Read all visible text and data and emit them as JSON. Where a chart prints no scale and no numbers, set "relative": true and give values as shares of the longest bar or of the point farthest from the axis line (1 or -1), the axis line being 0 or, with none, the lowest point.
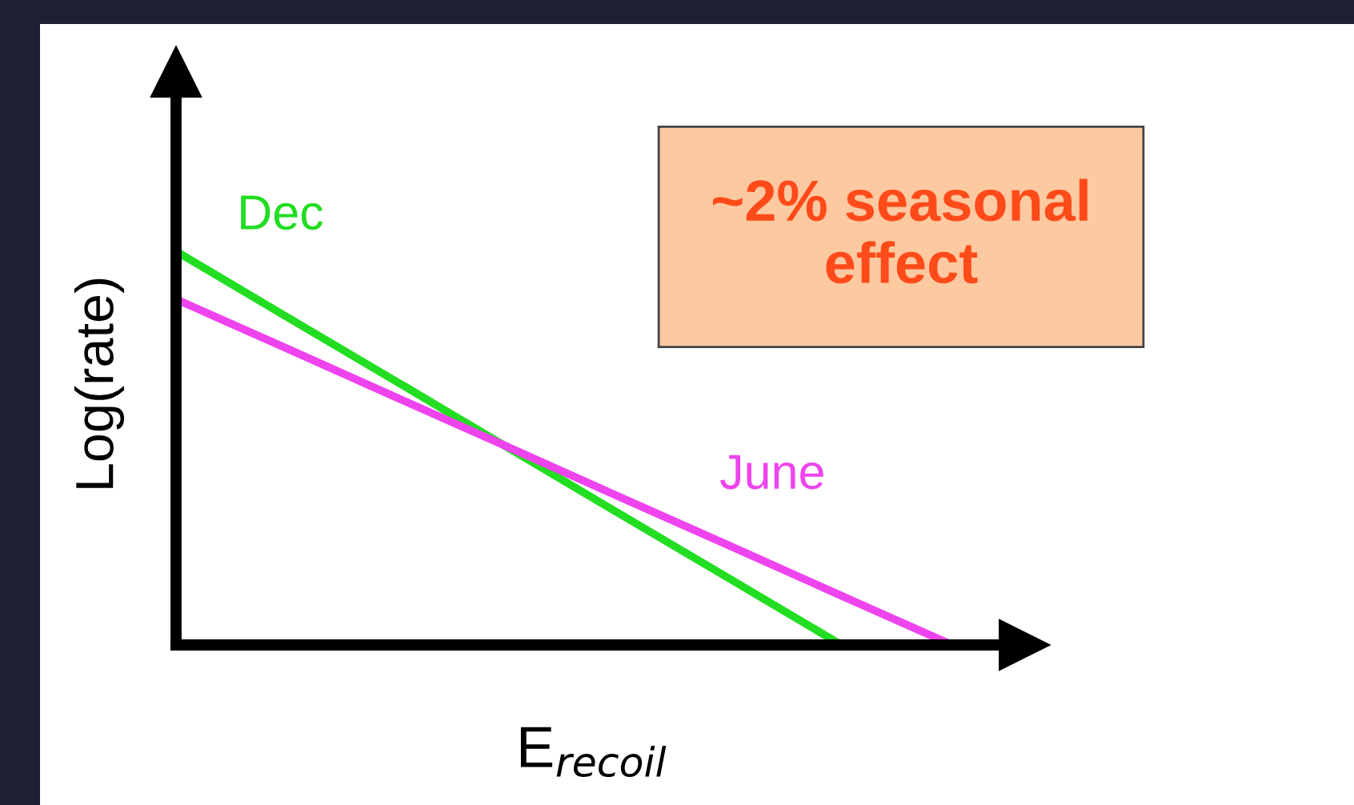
{
  "chart_data": {
    "type": "line",
    "relative": true,
    "xlabel": "E$_{recoil}$",
    "ylabel": "Log(rate)",
    "categories": [
      null,
      null,
      null,
      null,
      null,
      null,
      null,
      null
    ],
    "series": [
      {
        "name": "Dec",
        "color": "#22dd22",
        "values": [
          1,
          0.833,
          0.667,
          0.5,
          0.333,
          0.167,
          0,
          null
        ]
      },
      {
        "name": "June",
        "color": "#ee44ee",
        "values": [
          0.878,
          0.753,
          0.627,
          0.502,
          0.376,
          0.251,
          0.125,
          0
        ]
      }
    ],
    "annotations": [
      "~2% seasonal\neffect"
    ],
    "legend": false,
    "marker": "none",
    "line_style": "solid"
  }
}
